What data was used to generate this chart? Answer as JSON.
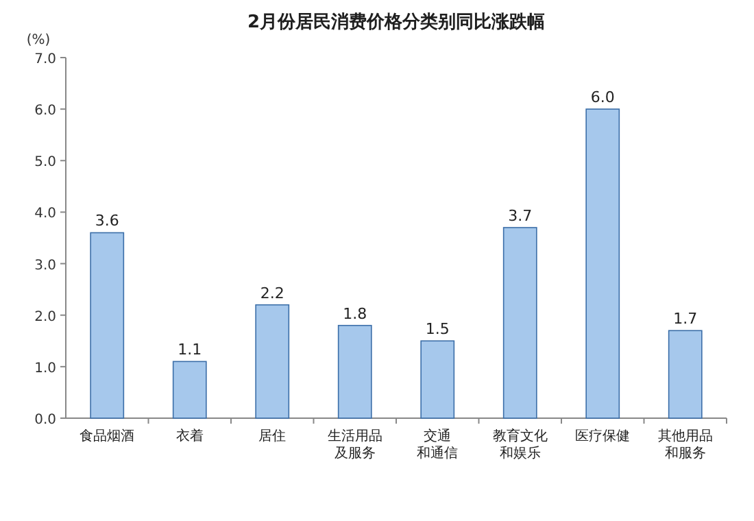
{
  "chart_data": {
    "type": "bar",
    "title": "2月份居民消费价格分类别同比涨跌幅",
    "ylabel": "(%)",
    "categories": [
      "食品烟酒",
      "衣着",
      "居住",
      "生活用品及服务",
      "交通和通信",
      "教育文化和娱乐",
      "医疗保健",
      "其他用品和服务"
    ],
    "values": [
      3.6,
      1.1,
      2.2,
      1.8,
      1.5,
      3.7,
      6.0,
      1.7
    ],
    "color": "#a6c8ec",
    "ylim": [
      0,
      7
    ],
    "yticks": [
      {
        "value": 0,
        "label": "0.0"
      },
      {
        "value": 1,
        "label": "1.0"
      },
      {
        "value": 2,
        "label": "2.0"
      },
      {
        "value": 3,
        "label": "3.0"
      },
      {
        "value": 4,
        "label": "4.0"
      },
      {
        "value": 5,
        "label": "5.0"
      },
      {
        "value": 6,
        "label": "6.0"
      },
      {
        "value": 7,
        "label": "7.0"
      }
    ],
    "value_labels": [
      "3.6",
      "1.1",
      "2.2",
      "1.8",
      "1.5",
      "3.7",
      "6.0",
      "1.7"
    ],
    "grid": false
  }
}
